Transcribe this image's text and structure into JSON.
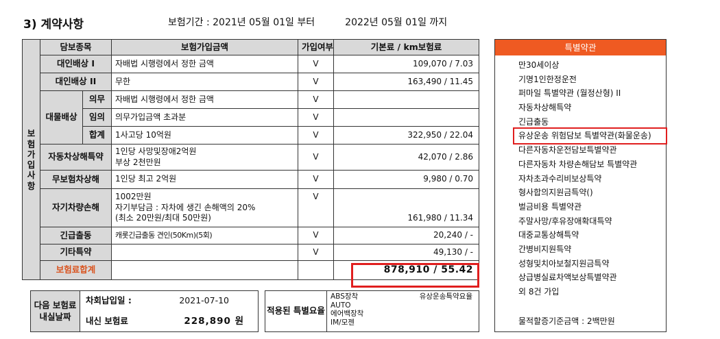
{
  "header": {
    "section_title": "3) 계약사항",
    "period_label": "보험기간 : 2021년 05월 01일  부터",
    "period_end": "2022년 05월 01일  까지"
  },
  "table": {
    "side_label": "보험가입사항",
    "headers": [
      "담보종목",
      "보험가입금액",
      "가입여부",
      "기본료 / km보험료"
    ],
    "rows": {
      "bodily1": {
        "name": "대인배상 I",
        "amount": "자배법 시행령에서 정한 금액",
        "joined": "V",
        "premium": "109,070 / 7.03"
      },
      "bodily2": {
        "name": "대인배상 II",
        "amount": "무한",
        "joined": "V",
        "premium": "163,490 / 11.45"
      },
      "property": {
        "group": "대물배상",
        "mandatory": {
          "name": "의무",
          "amount": "자배법 시행령에서 정한 금액",
          "joined": "V",
          "premium": ""
        },
        "optional": {
          "name": "임의",
          "amount": "의무가입금액 초과분",
          "joined": "V",
          "premium": ""
        },
        "sum": {
          "name": "합계",
          "amount": "1사고당   10억원",
          "joined": "V",
          "premium": "322,950 / 22.04"
        }
      },
      "self_injury": {
        "name": "자동차상해특약",
        "amount1": "1인당   사망및장애2억원",
        "amount2": "부상 2천만원",
        "joined": "V",
        "premium": "42,070 / 2.86"
      },
      "uninsured": {
        "name": "무보험차상해",
        "amount": "1인당 최고 2억원",
        "joined": "V",
        "premium": "9,980 / 0.70"
      },
      "own_damage": {
        "name": "자기차량손해",
        "amount1": "1002만원",
        "amount2": "자기부담금 : 자차에 생긴 손해액의 20%",
        "amount3": "(최소 20만원/최대 50만원)",
        "joined": "V",
        "premium": "161,980 / 11.34"
      },
      "emergency": {
        "name": "긴급출동",
        "amount": "캐롯긴급출동 견인(50Km)(5회)",
        "joined": "V",
        "premium": "20,240 / -"
      },
      "other": {
        "name": "기타특약",
        "amount": "",
        "joined": "V",
        "premium": "49,130 / -"
      },
      "total": {
        "name": "보험료합계",
        "premium": "878,910 / 55.42"
      }
    }
  },
  "next_premium": {
    "label": "다음 보험료 내실날짜",
    "installment_label": "차회납입일 :",
    "installment_date": "2021-07-10",
    "pay_label": "내신 보험료",
    "pay_amount": "228,890  원"
  },
  "discounts": {
    "label": "적용된 특별요율",
    "items": [
      "ABS장착",
      "AUTO",
      "에어백장착",
      "IM/모젠"
    ],
    "note": "유상운송특약요율"
  },
  "special_terms": {
    "title": "특별약관",
    "items": [
      "만30세이상",
      "기명1인한정운전",
      "퍼마일 특별약관 (월정산형) II",
      "자동차상해특약",
      "긴급출동",
      "유상운송 위험담보 특별약관(화물운송)",
      "다른자동차운전담보특별약관",
      "다른자동차 차량손해담보 특별약관",
      "자차초과수리비보상특약",
      "형사합의지원금특약()",
      "벌금비용 특별약관",
      "주말사망/후유장애확대특약",
      "대중교통상해특약",
      "간병비지원특약",
      "성형및치아보철지원금특약",
      "상급병실료차액보상특별약관",
      "외 8건 가입"
    ],
    "footer": "물적할증기준금액 : 2백만원"
  },
  "colors": {
    "header_bg": "#d9d9d9",
    "accent_orange": "#ef5a22",
    "highlight_red": "#e01e1e",
    "total_label": "#d9531e"
  }
}
